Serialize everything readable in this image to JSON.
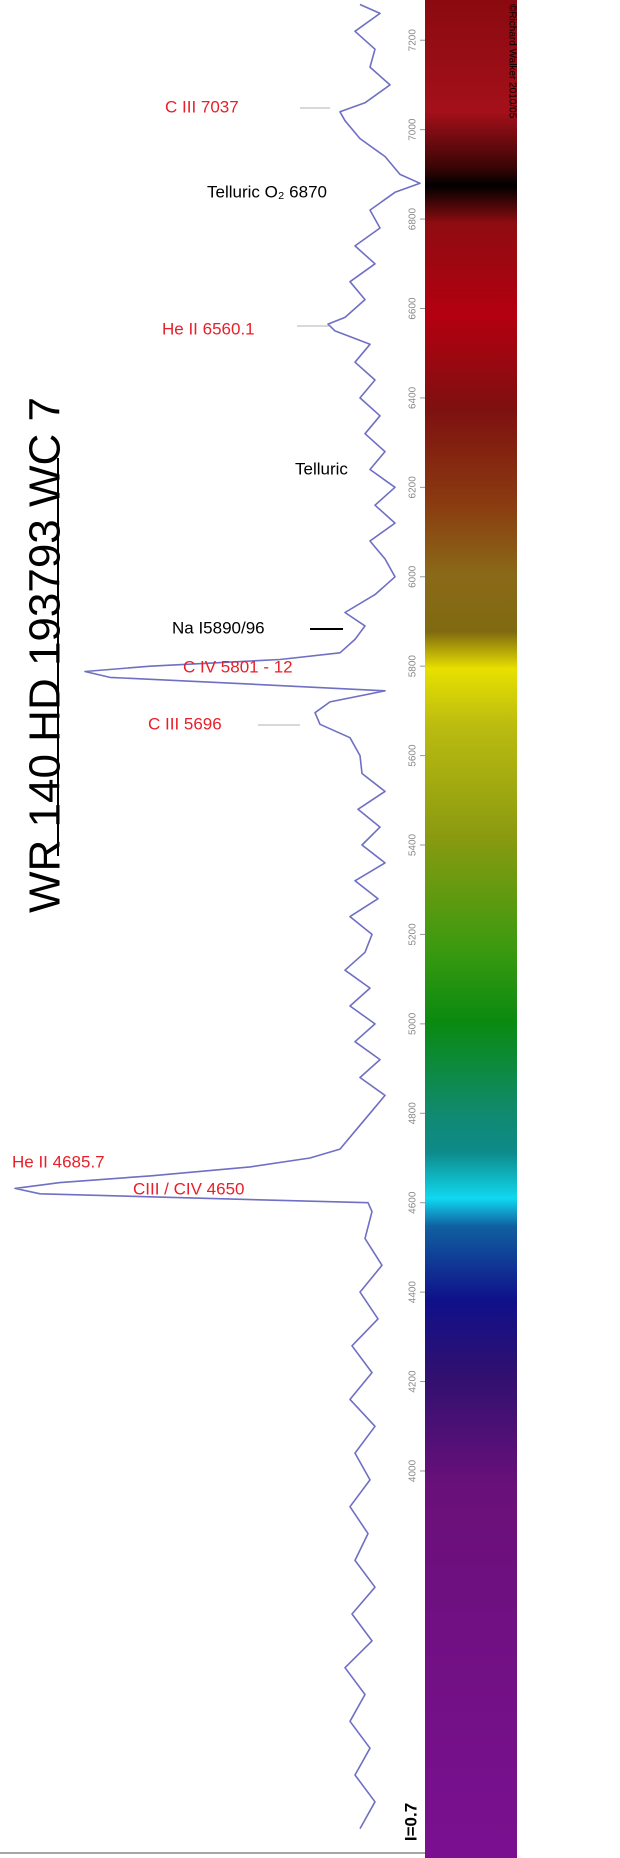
{
  "chart_data": {
    "type": "line",
    "title": "WR 140  HD 193793  WC 7",
    "copyright": "©Richard Walker 2010/05",
    "intensity_label": "I=0.7",
    "color": "#6f6fc4",
    "x": [
      3200,
      3260,
      3320,
      3380,
      3440,
      3500,
      3560,
      3620,
      3680,
      3740,
      3800,
      3860,
      3920,
      3980,
      4040,
      4100,
      4160,
      4220,
      4280,
      4340,
      4400,
      4460,
      4520,
      4580,
      4600,
      4610,
      4620,
      4632,
      4645,
      4660,
      4680,
      4700,
      4720,
      4760,
      4800,
      4840,
      4880,
      4920,
      4960,
      5000,
      5040,
      5080,
      5120,
      5160,
      5200,
      5240,
      5280,
      5320,
      5360,
      5400,
      5440,
      5480,
      5520,
      5560,
      5600,
      5640,
      5670,
      5696,
      5720,
      5745,
      5760,
      5775,
      5788,
      5800,
      5815,
      5830,
      5860,
      5890,
      5920,
      5960,
      6000,
      6040,
      6080,
      6120,
      6160,
      6200,
      6240,
      6280,
      6320,
      6360,
      6400,
      6440,
      6480,
      6520,
      6550,
      6565,
      6580,
      6620,
      6660,
      6700,
      6740,
      6780,
      6820,
      6860,
      6880,
      6900,
      6940,
      6980,
      7020,
      7040,
      7060,
      7100,
      7140,
      7180,
      7220,
      7260,
      7280
    ],
    "values": [
      1.0,
      0.925,
      1.025,
      0.95,
      1.05,
      0.975,
      1.075,
      0.94,
      1.04,
      0.925,
      1.025,
      0.96,
      1.05,
      0.95,
      1.025,
      0.925,
      1.05,
      0.94,
      1.04,
      0.91,
      1.0,
      0.89,
      0.975,
      0.94,
      0.96,
      1.8,
      2.6,
      2.725,
      2.5,
      2.05,
      1.55,
      1.25,
      1.1,
      1.025,
      0.95,
      0.875,
      1.0,
      0.9,
      1.025,
      0.925,
      1.05,
      0.95,
      1.075,
      0.975,
      0.94,
      1.05,
      0.91,
      1.025,
      0.875,
      0.99,
      0.9,
      1.01,
      0.875,
      0.99,
      1.0,
      1.05,
      1.2,
      1.225,
      1.15,
      0.875,
      1.55,
      2.25,
      2.375,
      2.05,
      1.4,
      1.1,
      1.025,
      0.975,
      1.075,
      0.925,
      0.825,
      0.875,
      0.95,
      0.825,
      0.925,
      0.825,
      0.95,
      0.875,
      0.975,
      0.9,
      1.0,
      0.925,
      1.025,
      0.95,
      1.125,
      1.16,
      1.075,
      0.975,
      1.05,
      0.925,
      1.025,
      0.9,
      0.95,
      0.825,
      0.7,
      0.8,
      0.875,
      1.0,
      1.075,
      1.1,
      0.975,
      0.85,
      0.95,
      0.925,
      1.025,
      0.9,
      1.0
    ],
    "xlim": [
      3150,
      7290
    ],
    "ylim": [
      0.7,
      2.8
    ],
    "xticks": [
      4000,
      4200,
      4400,
      4600,
      4800,
      5000,
      5200,
      5400,
      5600,
      5800,
      6000,
      6200,
      6400,
      6600,
      6800,
      7000,
      7200
    ],
    "annotations": [
      {
        "text": "C III  7037",
        "color": "#e8202a"
      },
      {
        "text": "Telluric O₂  6870",
        "color": "#000000"
      },
      {
        "text": "He II  6560.1",
        "color": "#e8202a"
      },
      {
        "text": "Telluric",
        "color": "#000000"
      },
      {
        "text": "Na I5890/96",
        "color": "#000000"
      },
      {
        "text": "C IV  5801 - 12",
        "color": "#e8202a"
      },
      {
        "text": "C III  5696",
        "color": "#e8202a"
      },
      {
        "text": "He II 4685.7",
        "color": "#e8202a"
      },
      {
        "text": "CIII / CIV 4650",
        "color": "#e8202a"
      }
    ]
  }
}
